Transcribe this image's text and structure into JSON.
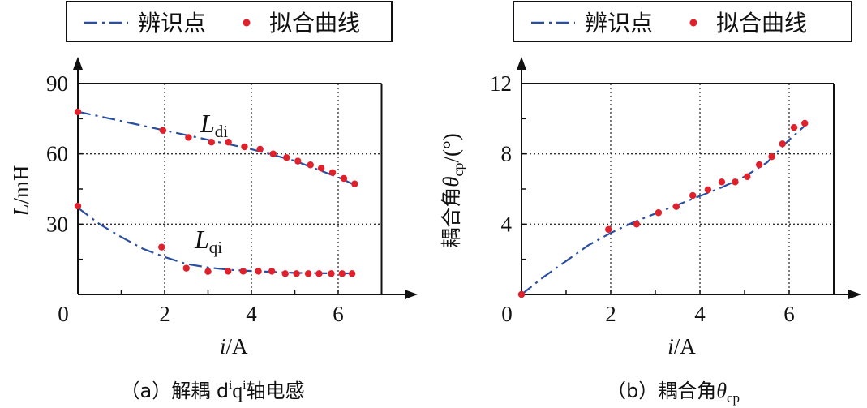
{
  "colors": {
    "fit_line": "#2b4fa0",
    "points": "#e0202a",
    "axis": "#111111",
    "grid": "#333333"
  },
  "chart_data": [
    {
      "type": "line",
      "legend": {
        "placement": "top",
        "entries": [
          {
            "label": "辨识点",
            "style": "dash-dot line"
          },
          {
            "label": "拟合曲线",
            "style": "dot marker"
          }
        ]
      },
      "xlabel_var": "i",
      "xlabel_unit": "/A",
      "ylabel_var": "L",
      "ylabel_unit": "/mH",
      "xlim": [
        0,
        7
      ],
      "ylim": [
        0,
        90
      ],
      "xticks": [
        "0",
        "2",
        "4",
        "6"
      ],
      "yticks": [
        "0",
        "30",
        "60",
        "90"
      ],
      "xtick_values": [
        0,
        2,
        4,
        6
      ],
      "ytick_values": [
        0,
        30,
        60,
        90
      ],
      "grid": true,
      "caption_prefix": "（a）解耦 d",
      "caption_sup1": "i",
      "caption_mid": "q",
      "caption_sup2": "i",
      "caption_suffix": "轴电感",
      "series": [
        {
          "label_main": "L",
          "label_sub": "di",
          "line": {
            "x": [
              0,
              1,
              2,
              3,
              4,
              5,
              6,
              6.35
            ],
            "y": [
              78,
              74,
              70,
              66,
              62,
              57,
              50,
              47
            ]
          },
          "points": {
            "x": [
              0,
              1.96,
              2.55,
              3.08,
              3.47,
              3.84,
              4.2,
              4.5,
              4.81,
              5.07,
              5.36,
              5.61,
              5.87,
              6.13,
              6.38
            ],
            "y": [
              77.9,
              70,
              67,
              65,
              65,
              63,
              62,
              60,
              58.4,
              56.9,
              55.3,
              53.9,
              52,
              49.5,
              47.2
            ]
          }
        },
        {
          "label_main": "L",
          "label_sub": "qi",
          "line": {
            "x": [
              0,
              0.5,
              1,
              1.5,
              2,
              2.5,
              3,
              3.5,
              4,
              5,
              6,
              6.3
            ],
            "y": [
              37,
              30,
              24.5,
              19.5,
              16,
              13,
              11.5,
              10.5,
              10,
              9.2,
              9,
              9
            ]
          },
          "points": {
            "x": [
              0,
              1.93,
              2.5,
              3.0,
              3.46,
              3.81,
              4.16,
              4.47,
              4.78,
              5.04,
              5.31,
              5.56,
              5.84,
              6.09,
              6.32
            ],
            "y": [
              37.7,
              20.2,
              11.2,
              9.8,
              9.9,
              9.9,
              9.9,
              9.9,
              8.9,
              8.9,
              8.9,
              8.9,
              8.9,
              8.9,
              8.9
            ]
          }
        }
      ]
    },
    {
      "type": "line",
      "legend": {
        "placement": "top",
        "entries": [
          {
            "label": "辨识点",
            "style": "dash-dot line"
          },
          {
            "label": "拟合曲线",
            "style": "dot marker"
          }
        ]
      },
      "xlabel_var": "i",
      "xlabel_unit": "/A",
      "ylabel_prefix": "耦合角",
      "ylabel_var": "θ",
      "ylabel_sub": "cp",
      "ylabel_unit": "/(°)",
      "xlim": [
        0,
        7
      ],
      "ylim": [
        0,
        12
      ],
      "xticks": [
        "0",
        "2",
        "4",
        "6"
      ],
      "yticks": [
        "4",
        "8",
        "12"
      ],
      "xtick_values": [
        0,
        2,
        4,
        6
      ],
      "ytick_values": [
        4,
        8,
        12
      ],
      "grid": true,
      "caption_prefix": "（b）耦合角",
      "caption_var": "θ",
      "caption_sub": "cp",
      "series": [
        {
          "line": {
            "x": [
              0,
              0.5,
              1,
              1.5,
              2,
              2.5,
              3,
              3.5,
              4,
              4.5,
              5,
              5.5,
              6,
              6.35
            ],
            "y": [
              0,
              1,
              1.9,
              2.8,
              3.5,
              4.1,
              4.6,
              5.1,
              5.6,
              6.1,
              6.7,
              7.5,
              8.8,
              9.6
            ]
          },
          "points": {
            "x": [
              0,
              1.95,
              2.58,
              3.07,
              3.47,
              3.84,
              4.18,
              4.49,
              4.79,
              5.06,
              5.33,
              5.61,
              5.85,
              6.11,
              6.35
            ],
            "y": [
              0,
              3.7,
              4.0,
              4.65,
              5.0,
              5.63,
              5.96,
              6.4,
              6.4,
              6.7,
              7.38,
              7.84,
              8.57,
              9.5,
              9.74
            ]
          }
        }
      ]
    }
  ]
}
